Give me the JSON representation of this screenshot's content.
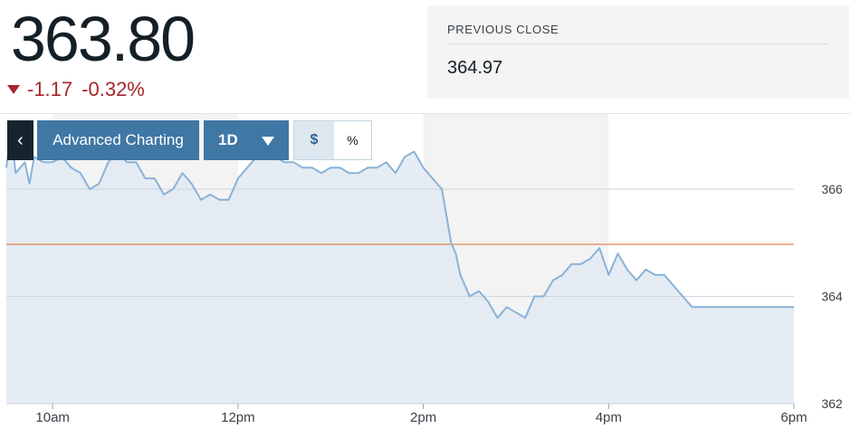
{
  "quote": {
    "price": "363.80",
    "change": "-1.17",
    "change_pct": "-0.32%",
    "previous_close_label": "PREVIOUS CLOSE",
    "previous_close_value": "364.97"
  },
  "toolbar": {
    "back_glyph": "‹",
    "advanced_label": "Advanced Charting",
    "range_label": "1D",
    "dollar_label": "$",
    "percent_label": "%"
  },
  "colors": {
    "down": "#a5262d",
    "line": "#8ab2d8",
    "fill": "#e1e9f2",
    "band": "#d9e3ee",
    "ref_line": "#e0874b",
    "button": "#3f77a5"
  },
  "icons": [
    "down-triangle-icon",
    "chevron-left-icon",
    "caret-down-icon"
  ],
  "chart_data": {
    "type": "area",
    "x_ticks": [
      "10am",
      "12pm",
      "2pm",
      "4pm",
      "6pm"
    ],
    "y_ticks": [
      "366",
      "364",
      "362"
    ],
    "ylim": [
      362,
      367.4
    ],
    "previous_close": 364.97,
    "x_range_hours": [
      9.5,
      18.0
    ],
    "x": [
      9.5,
      9.55,
      9.6,
      9.7,
      9.75,
      9.8,
      9.9,
      10.0,
      10.1,
      10.2,
      10.3,
      10.4,
      10.5,
      10.6,
      10.7,
      10.8,
      10.9,
      11.0,
      11.1,
      11.2,
      11.3,
      11.4,
      11.5,
      11.6,
      11.7,
      11.8,
      11.9,
      12.0,
      12.1,
      12.2,
      12.3,
      12.4,
      12.5,
      12.6,
      12.7,
      12.8,
      12.9,
      13.0,
      13.1,
      13.2,
      13.3,
      13.4,
      13.5,
      13.6,
      13.7,
      13.8,
      13.9,
      14.0,
      14.1,
      14.2,
      14.3,
      14.35,
      14.4,
      14.5,
      14.6,
      14.7,
      14.8,
      14.9,
      15.0,
      15.1,
      15.2,
      15.3,
      15.4,
      15.5,
      15.6,
      15.7,
      15.8,
      15.9,
      16.0,
      16.1,
      16.2,
      16.3,
      16.4,
      16.5,
      16.6,
      16.7,
      16.8,
      16.9,
      17.0,
      17.1,
      17.2,
      17.3,
      17.4,
      17.5,
      17.55,
      17.6,
      17.7,
      17.8,
      17.9,
      18.0
    ],
    "y": [
      366.4,
      367.1,
      366.3,
      366.5,
      366.1,
      366.6,
      366.5,
      366.5,
      366.6,
      366.4,
      366.3,
      366.0,
      366.1,
      366.5,
      366.7,
      366.5,
      366.5,
      366.2,
      366.2,
      365.9,
      366.0,
      366.3,
      366.1,
      365.8,
      365.9,
      365.8,
      365.8,
      366.2,
      366.4,
      366.6,
      366.6,
      366.6,
      366.5,
      366.5,
      366.4,
      366.4,
      366.3,
      366.4,
      366.4,
      366.3,
      366.3,
      366.4,
      366.4,
      366.5,
      366.3,
      366.6,
      366.7,
      366.4,
      366.2,
      366.0,
      365.0,
      364.8,
      364.4,
      364.0,
      364.1,
      363.9,
      363.6,
      363.8,
      363.7,
      363.6,
      364.0,
      364.0,
      364.3,
      364.4,
      364.6,
      364.6,
      364.7,
      364.9,
      364.4,
      364.8,
      364.5,
      364.3,
      364.5,
      364.4,
      364.4,
      364.2,
      364.0,
      363.8,
      363.8,
      363.8,
      363.8,
      363.8,
      363.8,
      363.8,
      363.8,
      363.8,
      363.8,
      363.8,
      363.8,
      363.8
    ]
  }
}
